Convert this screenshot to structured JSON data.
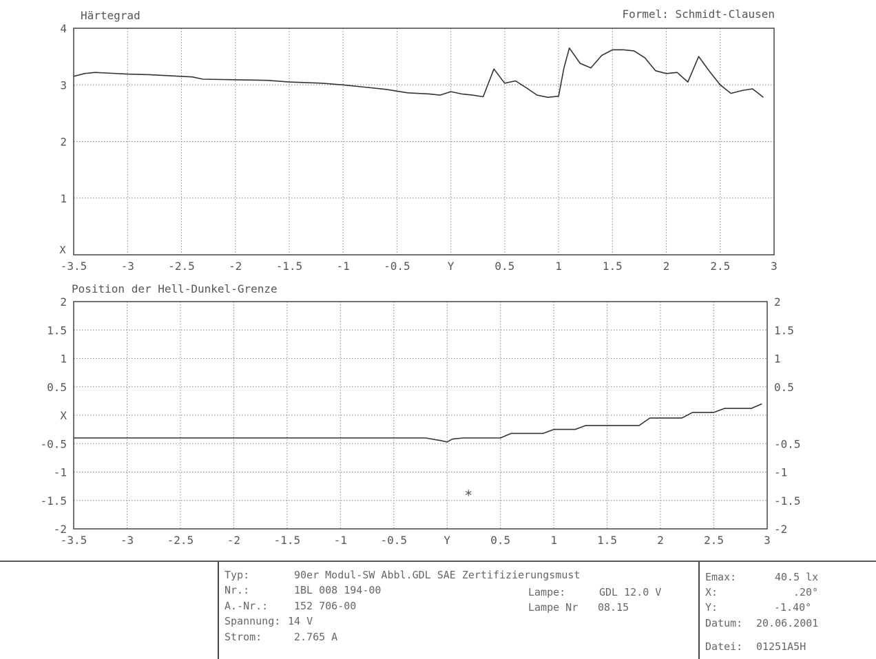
{
  "header": {
    "formula_label": "Formel: Schmidt-Clausen"
  },
  "chart_data": [
    {
      "type": "line",
      "title": "Härtegrad",
      "xlabel": "Y",
      "ylabel": "X",
      "xlim": [
        -3.5,
        3
      ],
      "ylim": [
        0,
        4
      ],
      "x_ticks": [
        -3.5,
        -3,
        -2.5,
        -2,
        -1.5,
        -1,
        -0.5,
        0,
        0.5,
        1,
        1.5,
        2,
        2.5,
        3
      ],
      "x_tick_labels": [
        "-3.5",
        "-3",
        "-2.5",
        "-2",
        "-1.5",
        "-1",
        "-0.5",
        "Y",
        "0.5",
        "1",
        "1.5",
        "2",
        "2.5",
        "3"
      ],
      "y_ticks": [
        1,
        2,
        3,
        4
      ],
      "y_tick_labels": [
        "1",
        "2",
        "3",
        "4"
      ],
      "grid": true,
      "series": [
        {
          "x": [
            -3.5,
            -3.4,
            -3.3,
            -3.2,
            -3.0,
            -2.8,
            -2.6,
            -2.4,
            -2.3,
            -2.0,
            -1.7,
            -1.5,
            -1.2,
            -1.0,
            -0.8,
            -0.6,
            -0.4,
            -0.2,
            -0.1,
            0.0,
            0.1,
            0.2,
            0.3,
            0.4,
            0.5,
            0.6,
            0.7,
            0.8,
            0.9,
            1.0,
            1.05,
            1.1,
            1.2,
            1.3,
            1.4,
            1.5,
            1.6,
            1.7,
            1.8,
            1.9,
            2.0,
            2.1,
            2.2,
            2.3,
            2.4,
            2.5,
            2.6,
            2.7,
            2.8,
            2.9
          ],
          "y": [
            3.15,
            3.2,
            3.22,
            3.21,
            3.19,
            3.18,
            3.16,
            3.14,
            3.1,
            3.09,
            3.08,
            3.05,
            3.03,
            3.0,
            2.96,
            2.92,
            2.86,
            2.84,
            2.82,
            2.88,
            2.84,
            2.82,
            2.79,
            3.28,
            3.03,
            3.07,
            2.95,
            2.82,
            2.78,
            2.8,
            3.3,
            3.65,
            3.38,
            3.3,
            3.52,
            3.62,
            3.62,
            3.6,
            3.48,
            3.25,
            3.2,
            3.22,
            3.05,
            3.5,
            3.24,
            3.0,
            2.85,
            2.9,
            2.93,
            2.78
          ]
        }
      ]
    },
    {
      "type": "line",
      "title": "Position der Hell-Dunkel-Grenze",
      "xlabel": "Y",
      "ylabel": "X",
      "xlim": [
        -3.5,
        3
      ],
      "ylim": [
        -2,
        2
      ],
      "x_ticks": [
        -3.5,
        -3,
        -2.5,
        -2,
        -1.5,
        -1,
        -0.5,
        0,
        0.5,
        1,
        1.5,
        2,
        2.5,
        3
      ],
      "x_tick_labels": [
        "-3.5",
        "-3",
        "-2.5",
        "-2",
        "-1.5",
        "-1",
        "-0.5",
        "Y",
        "0.5",
        "1",
        "1.5",
        "2",
        "2.5",
        "3"
      ],
      "y_ticks": [
        -2,
        -1.5,
        -1,
        -0.5,
        0,
        0.5,
        1,
        1.5,
        2
      ],
      "y_tick_labels_left": [
        "-2",
        "-1.5",
        "-1",
        "-0.5",
        "X",
        "0.5",
        "1",
        "1.5",
        "2"
      ],
      "y_tick_labels_right": [
        "-2",
        "-1.5",
        "-1",
        "-0.5",
        "",
        "0.5",
        "1",
        "1.5",
        "2"
      ],
      "grid": true,
      "series": [
        {
          "x": [
            -3.5,
            -2.0,
            -1.0,
            -0.2,
            -0.05,
            0.0,
            0.05,
            0.15,
            0.5,
            0.6,
            0.9,
            1.0,
            1.2,
            1.3,
            1.8,
            1.9,
            2.2,
            2.3,
            2.5,
            2.6,
            2.85,
            2.95
          ],
          "y": [
            -0.4,
            -0.4,
            -0.4,
            -0.4,
            -0.45,
            -0.47,
            -0.42,
            -0.4,
            -0.4,
            -0.32,
            -0.32,
            -0.25,
            -0.25,
            -0.18,
            -0.18,
            -0.05,
            -0.05,
            0.05,
            0.05,
            0.12,
            0.12,
            0.2
          ]
        }
      ],
      "annotations": [
        {
          "x": 0.2,
          "y": -1.4,
          "text": "*"
        }
      ]
    }
  ],
  "footer": {
    "typ_label": "Typ:",
    "typ_value": "90er Modul-SW Abbl.GDL SAE Zertifizierungsmust",
    "nr_label": "Nr.:",
    "nr_value": "1BL 008 194-00",
    "anr_label": "A.-Nr.:",
    "anr_value": "152 706-00",
    "spannung_label": "Spannung:",
    "spannung_value": "14 V",
    "strom_label": "Strom:",
    "strom_value": "2.765 A",
    "lampe_label": "Lampe:",
    "lampe_value": "GDL 12.0 V",
    "lampe_nr_label": "Lampe Nr",
    "lampe_nr_value": "08.15",
    "emax_label": "Emax:",
    "emax_value": "40.5 lx",
    "x_label": "X:",
    "x_value": ".20°",
    "y_label": "Y:",
    "y_value": "-1.40°",
    "datum_label": "Datum:",
    "datum_value": "20.06.2001",
    "datei_label": "Datei:",
    "datei_value": "01251A5H"
  }
}
